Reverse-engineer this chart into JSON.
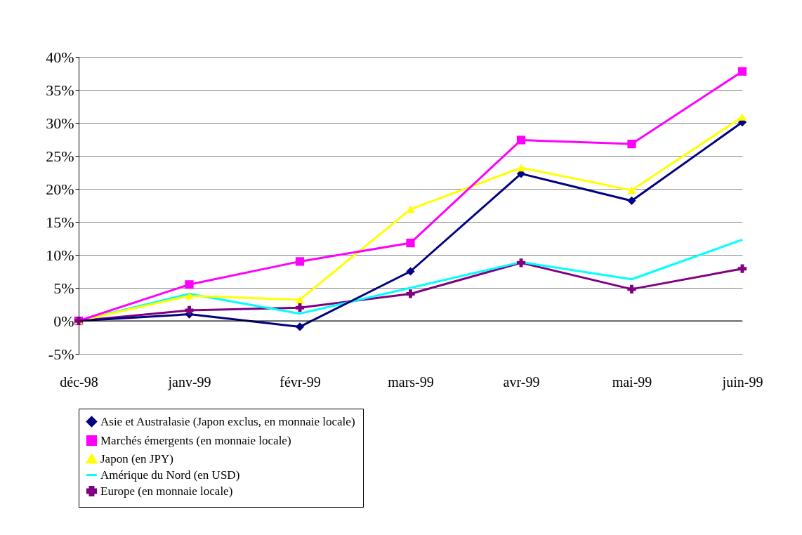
{
  "chart_data": {
    "type": "line",
    "categories": [
      "déc-98",
      "janv-99",
      "févr-99",
      "mars-99",
      "avr-99",
      "mai-99",
      "juin-99"
    ],
    "series": [
      {
        "name": "Asie et Australasie (Japon exclus, en monnaie locale)",
        "color": "#000080",
        "marker": "diamond",
        "values": [
          0,
          1,
          -0.9,
          7.5,
          22.3,
          18.2,
          30.1
        ]
      },
      {
        "name": "Marchés émergents (en monnaie locale)",
        "color": "#ff00ff",
        "marker": "square",
        "values": [
          0,
          5.5,
          9,
          11.8,
          27.4,
          26.8,
          37.8
        ]
      },
      {
        "name": "Japon (en JPY)",
        "color": "#ffff00",
        "marker": "triangle",
        "values": [
          0,
          3.8,
          3.2,
          16.9,
          23.2,
          19.8,
          30.9
        ]
      },
      {
        "name": "Amérique du Nord (en USD)",
        "color": "#00ffff",
        "marker": "none",
        "values": [
          0,
          4.1,
          1.1,
          5,
          8.9,
          6.3,
          12.3
        ]
      },
      {
        "name": "Europe (en monnaie locale)",
        "color": "#800080",
        "marker": "cross",
        "values": [
          0,
          1.6,
          2,
          4.1,
          8.8,
          4.8,
          7.9
        ]
      }
    ],
    "ylim": [
      -5,
      40
    ],
    "yticks": [
      {
        "value": -5,
        "label": "-5%"
      },
      {
        "value": 0,
        "label": "0%"
      },
      {
        "value": 5,
        "label": "5%"
      },
      {
        "value": 10,
        "label": "10%"
      },
      {
        "value": 15,
        "label": "15%"
      },
      {
        "value": 20,
        "label": "20%"
      },
      {
        "value": 25,
        "label": "25%"
      },
      {
        "value": 30,
        "label": "30%"
      },
      {
        "value": 35,
        "label": "35%"
      },
      {
        "value": 40,
        "label": "40%"
      }
    ],
    "grid": "y",
    "legend": "bottom"
  }
}
